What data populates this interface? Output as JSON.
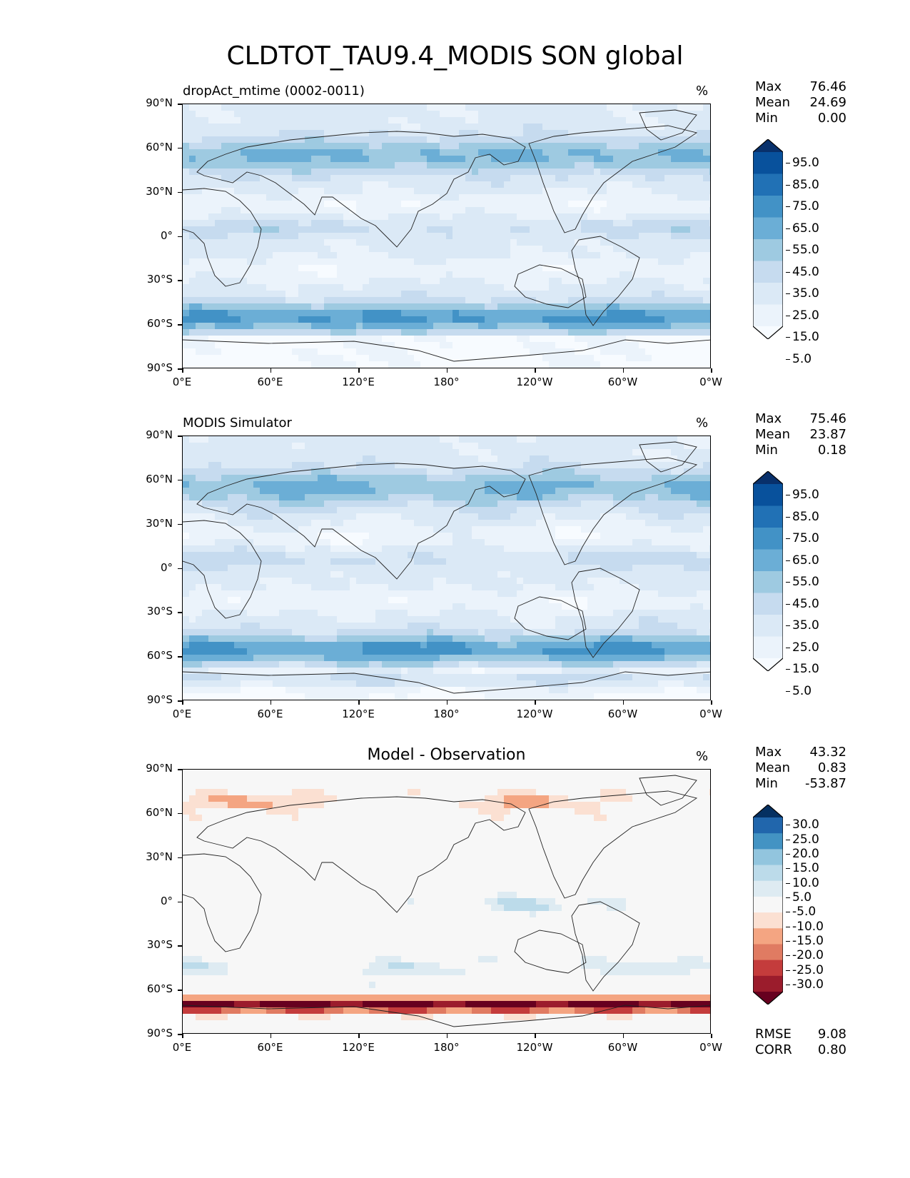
{
  "figure": {
    "title": "CLDTOT_TAU9.4_MODIS SON global"
  },
  "axes": {
    "lat_labels": [
      "90°N",
      "60°N",
      "30°N",
      "0°",
      "30°S",
      "60°S",
      "90°S"
    ],
    "lon_labels": [
      "0°E",
      "60°E",
      "120°E",
      "180°",
      "120°W",
      "60°W",
      "0°W"
    ]
  },
  "panels": [
    {
      "title": "dropAct_mtime (0002-0011)",
      "units": "%",
      "stats": [
        {
          "label": "Max",
          "value": "76.46"
        },
        {
          "label": "Mean",
          "value": "24.69"
        },
        {
          "label": "Min",
          "value": "0.00"
        }
      ],
      "colorbar": {
        "labels": [
          "95.0",
          "85.0",
          "75.0",
          "65.0",
          "55.0",
          "45.0",
          "35.0",
          "25.0",
          "15.0",
          "5.0"
        ],
        "colors": [
          "#08306b",
          "#08519c",
          "#2171b5",
          "#4292c6",
          "#6baed6",
          "#9ecae1",
          "#c6dbef",
          "#dbe9f6",
          "#ebf3fb",
          "#f7fbff"
        ]
      }
    },
    {
      "title": "MODIS Simulator",
      "units": "%",
      "stats": [
        {
          "label": "Max",
          "value": "75.46"
        },
        {
          "label": "Mean",
          "value": "23.87"
        },
        {
          "label": "Min",
          "value": "0.18"
        }
      ],
      "colorbar": {
        "labels": [
          "95.0",
          "85.0",
          "75.0",
          "65.0",
          "55.0",
          "45.0",
          "35.0",
          "25.0",
          "15.0",
          "5.0"
        ],
        "colors": [
          "#08306b",
          "#08519c",
          "#2171b5",
          "#4292c6",
          "#6baed6",
          "#9ecae1",
          "#c6dbef",
          "#dbe9f6",
          "#ebf3fb",
          "#f7fbff"
        ]
      }
    },
    {
      "title": "Model - Observation",
      "units": "%",
      "stats": [
        {
          "label": "Max",
          "value": "43.32"
        },
        {
          "label": "Mean",
          "value": "0.83"
        },
        {
          "label": "Min",
          "value": "-53.87"
        }
      ],
      "colorbar": {
        "labels": [
          "30.0",
          "25.0",
          "20.0",
          "15.0",
          "10.0",
          "5.0",
          "-5.0",
          "-10.0",
          "-15.0",
          "-20.0",
          "-25.0",
          "-30.0"
        ],
        "colors": [
          "#053061",
          "#2166ac",
          "#4393c3",
          "#92c5de",
          "#bcdbea",
          "#deebf2",
          "#f7f7f7",
          "#fbe0d2",
          "#f4a582",
          "#e07b62",
          "#c43c3c",
          "#9b1c2c",
          "#67001f"
        ]
      },
      "extra_stats": [
        {
          "label": "RMSE",
          "value": "9.08"
        },
        {
          "label": "CORR",
          "value": "0.80"
        }
      ]
    }
  ]
}
